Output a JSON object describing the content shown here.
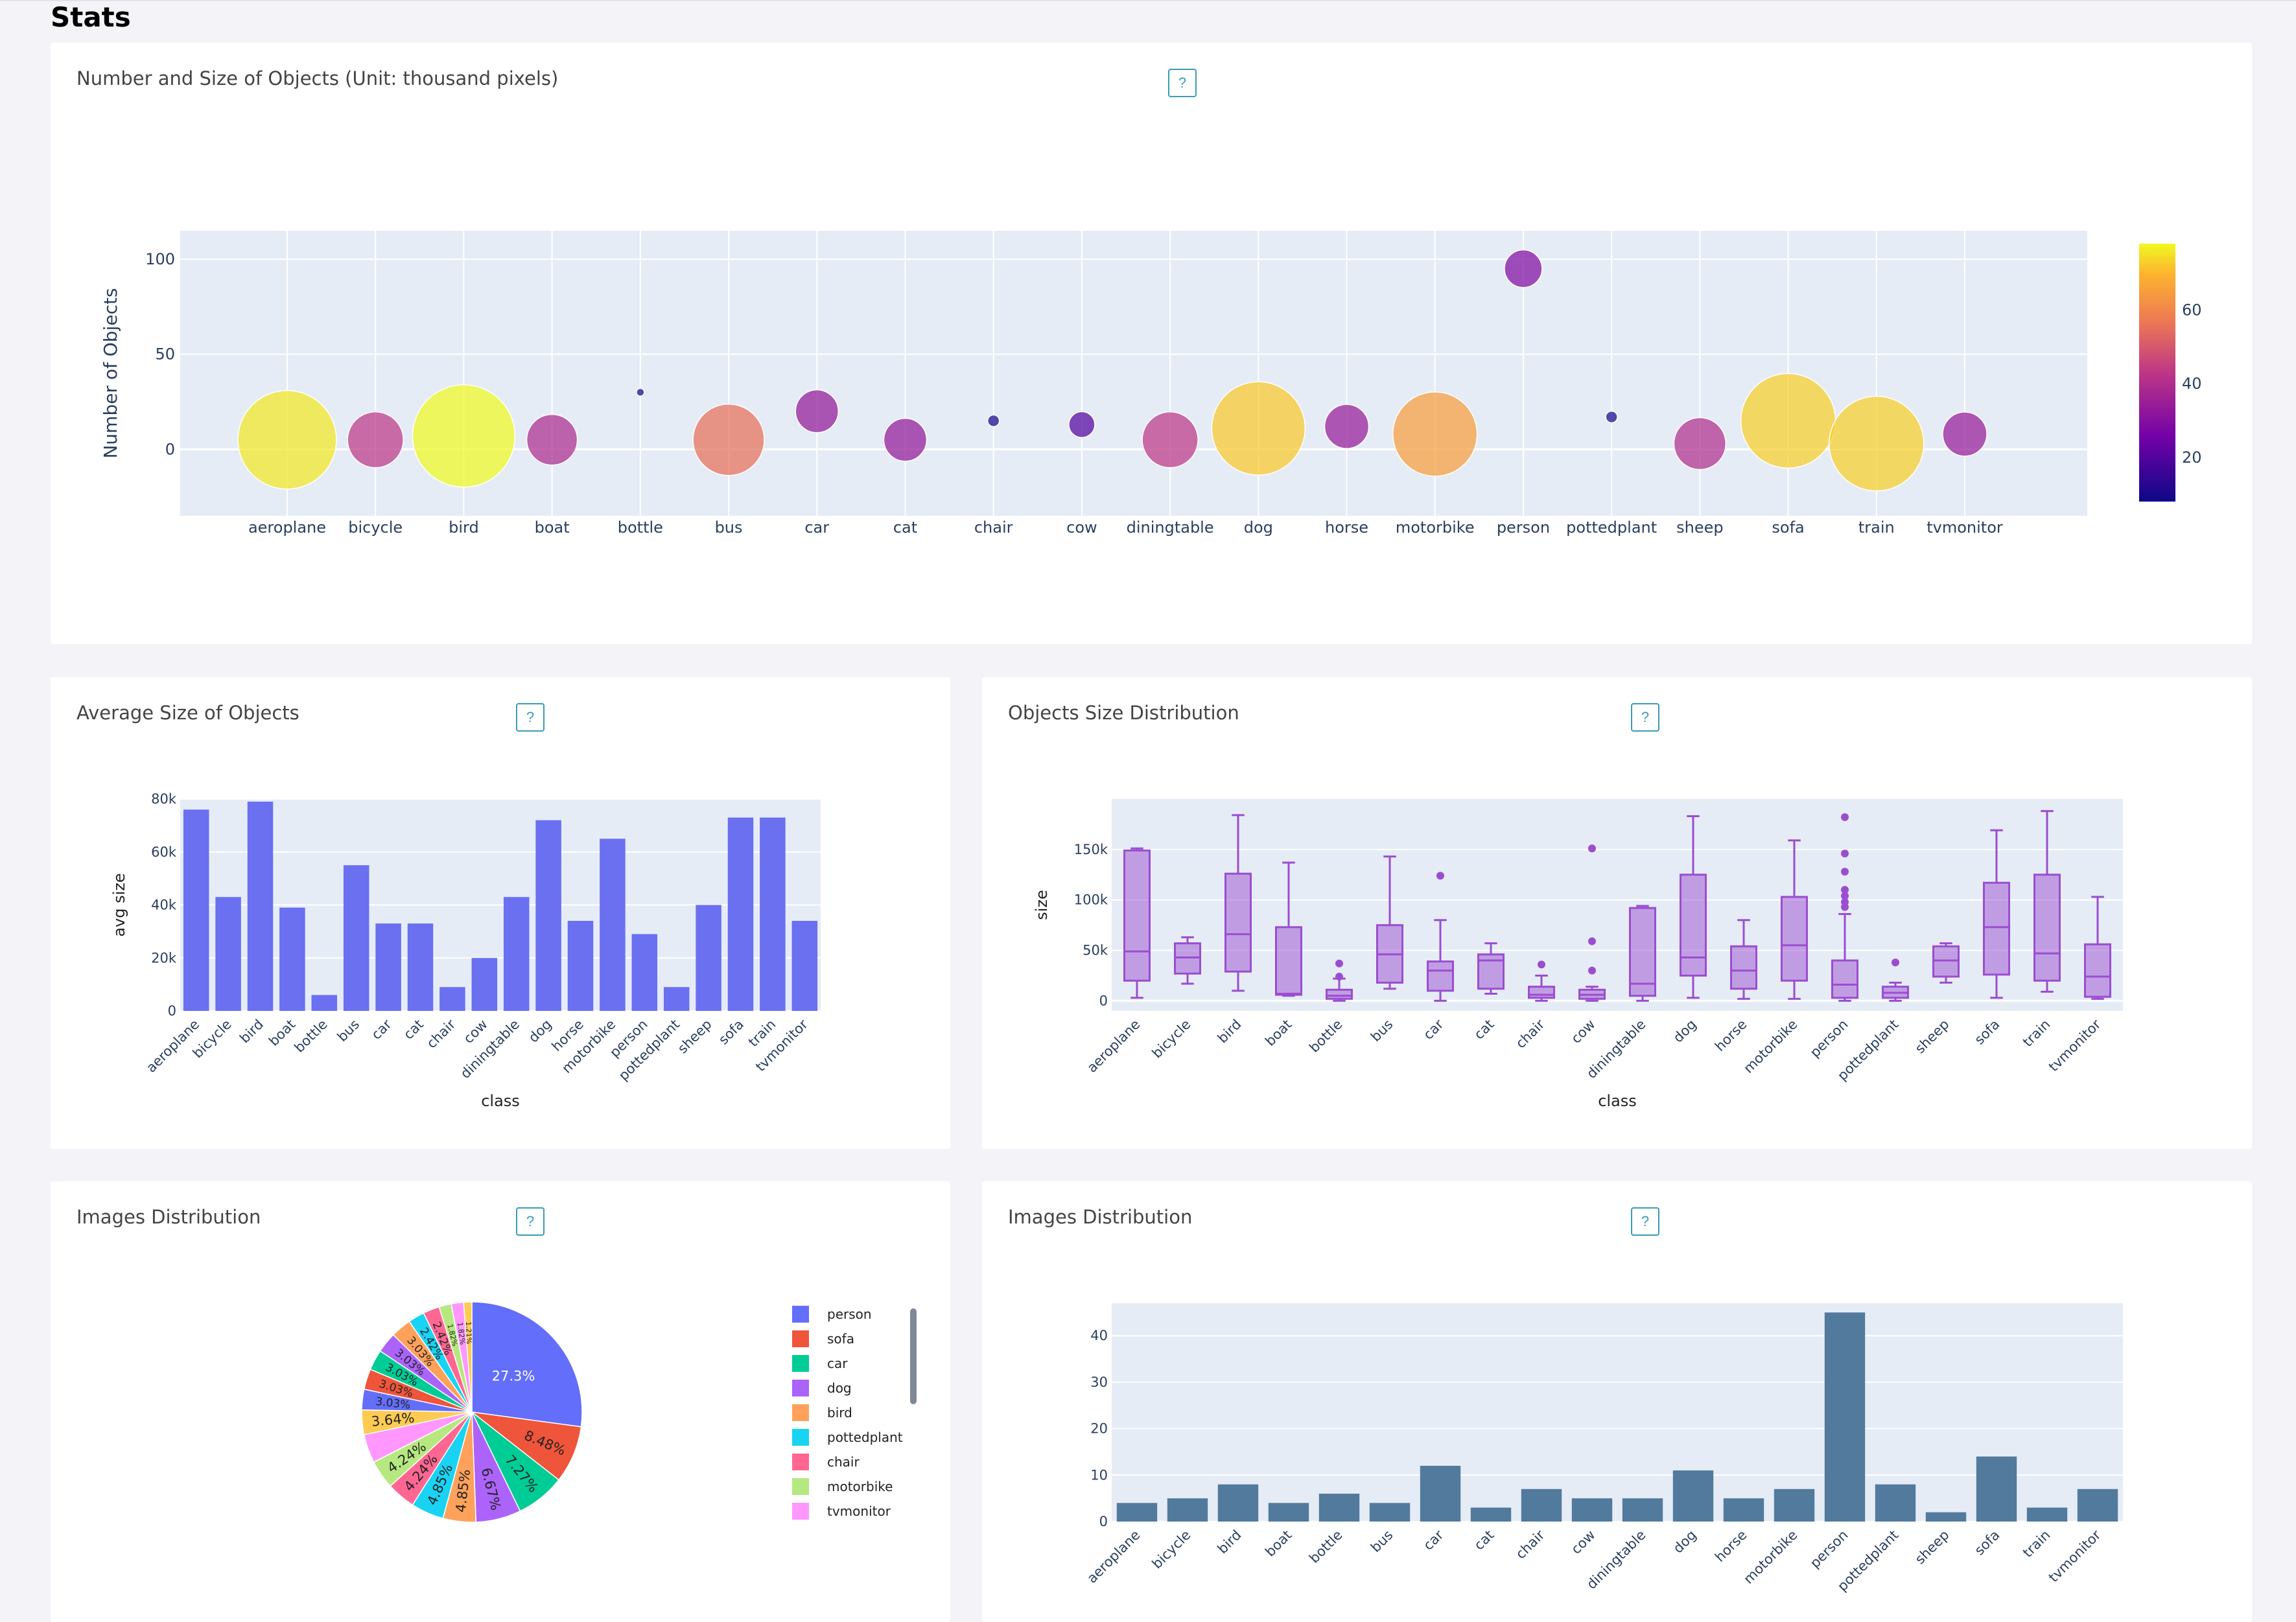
{
  "page": {
    "title": "Stats",
    "help_label": "?"
  },
  "cards": {
    "bubble": {
      "title": "Number and Size of Objects (Unit: thousand pixels)"
    },
    "avg": {
      "title": "Average Size of Objects"
    },
    "box": {
      "title": "Objects Size Distribution"
    },
    "pie": {
      "title": "Images Distribution"
    },
    "img_bar": {
      "title": "Images Distribution"
    }
  },
  "categories": [
    "aeroplane",
    "bicycle",
    "bird",
    "boat",
    "bottle",
    "bus",
    "car",
    "cat",
    "chair",
    "cow",
    "diningtable",
    "dog",
    "horse",
    "motorbike",
    "person",
    "pottedplant",
    "sheep",
    "sofa",
    "train",
    "tvmonitor"
  ],
  "chart_data": [
    {
      "id": "bubble",
      "type": "scatter",
      "ylabel": "Number of Objects",
      "yticks": [
        0,
        50,
        100
      ],
      "ylim": [
        -35,
        115
      ],
      "y": [
        5,
        5,
        7,
        5,
        30,
        5,
        20,
        5,
        15,
        13,
        5,
        11,
        12,
        8,
        95,
        17,
        3,
        15,
        3,
        8
      ],
      "size": [
        76,
        43,
        79,
        39,
        6,
        55,
        33,
        33,
        9,
        20,
        43,
        72,
        34,
        65,
        29,
        9,
        40,
        73,
        73,
        34
      ],
      "colorbar": {
        "ticks": [
          20,
          40,
          60
        ],
        "range": [
          8,
          78
        ]
      },
      "grid": true
    },
    {
      "id": "avg",
      "type": "bar",
      "xlabel": "class",
      "ylabel": "avg size",
      "yticks": [
        "0",
        "20k",
        "40k",
        "60k",
        "80k"
      ],
      "ylim": [
        0,
        80000
      ],
      "values": [
        76000,
        43000,
        79000,
        39000,
        6000,
        55000,
        33000,
        33000,
        9000,
        20000,
        43000,
        72000,
        34000,
        65000,
        29000,
        9000,
        40000,
        73000,
        73000,
        34000
      ],
      "color": "#6a70f0"
    },
    {
      "id": "box",
      "type": "box",
      "xlabel": "class",
      "ylabel": "size",
      "yticks": [
        "0",
        "50k",
        "100k",
        "150k"
      ],
      "ylim": [
        -10000,
        200000
      ],
      "boxes": [
        {
          "min": 3000,
          "q1": 20000,
          "median": 49000,
          "q3": 149000,
          "max": 151000,
          "outliers": []
        },
        {
          "min": 17000,
          "q1": 27000,
          "median": 43000,
          "q3": 57000,
          "max": 63000,
          "outliers": []
        },
        {
          "min": 10000,
          "q1": 29000,
          "median": 66000,
          "q3": 126000,
          "max": 184000,
          "outliers": []
        },
        {
          "min": 5000,
          "q1": 6000,
          "median": 7000,
          "q3": 73000,
          "max": 137000,
          "outliers": []
        },
        {
          "min": 0,
          "q1": 2000,
          "median": 5000,
          "q3": 11000,
          "max": 22000,
          "outliers": [
            24000,
            37000
          ]
        },
        {
          "min": 12000,
          "q1": 18000,
          "median": 46000,
          "q3": 75000,
          "max": 143000,
          "outliers": []
        },
        {
          "min": 0,
          "q1": 10000,
          "median": 30000,
          "q3": 39000,
          "max": 80000,
          "outliers": [
            124000
          ]
        },
        {
          "min": 7000,
          "q1": 12000,
          "median": 40000,
          "q3": 46000,
          "max": 57000,
          "outliers": []
        },
        {
          "min": 0,
          "q1": 3000,
          "median": 6000,
          "q3": 14000,
          "max": 25000,
          "outliers": [
            36000
          ]
        },
        {
          "min": 0,
          "q1": 2000,
          "median": 6000,
          "q3": 11000,
          "max": 14000,
          "outliers": [
            30000,
            59000,
            151000
          ]
        },
        {
          "min": 0,
          "q1": 5000,
          "median": 17000,
          "q3": 92000,
          "max": 94000,
          "outliers": []
        },
        {
          "min": 3000,
          "q1": 25000,
          "median": 43000,
          "q3": 125000,
          "max": 183000,
          "outliers": []
        },
        {
          "min": 2000,
          "q1": 12000,
          "median": 30000,
          "q3": 54000,
          "max": 80000,
          "outliers": []
        },
        {
          "min": 2000,
          "q1": 20000,
          "median": 55000,
          "q3": 103000,
          "max": 159000,
          "outliers": []
        },
        {
          "min": 0,
          "q1": 3000,
          "median": 16000,
          "q3": 40000,
          "max": 86000,
          "outliers": [
            93000,
            98000,
            104000,
            110000,
            128000,
            146000,
            182000
          ]
        },
        {
          "min": 0,
          "q1": 3000,
          "median": 8000,
          "q3": 14000,
          "max": 18000,
          "outliers": [
            38000
          ]
        },
        {
          "min": 18000,
          "q1": 24000,
          "median": 40000,
          "q3": 54000,
          "max": 57000,
          "outliers": []
        },
        {
          "min": 3000,
          "q1": 26000,
          "median": 73000,
          "q3": 117000,
          "max": 169000,
          "outliers": []
        },
        {
          "min": 9000,
          "q1": 20000,
          "median": 47000,
          "q3": 125000,
          "max": 188000,
          "outliers": []
        },
        {
          "min": 2000,
          "q1": 4000,
          "median": 24000,
          "q3": 56000,
          "max": 103000,
          "outliers": []
        }
      ],
      "color": "#9b4dd0"
    },
    {
      "id": "pie",
      "type": "pie",
      "legend_position": "right",
      "slices": [
        {
          "label": "person",
          "value": 27.3,
          "text": "27.3%",
          "color": "#636efa"
        },
        {
          "label": "sofa",
          "value": 8.48,
          "text": "8.48%",
          "color": "#ef553b"
        },
        {
          "label": "car",
          "value": 7.27,
          "text": "7.27%",
          "color": "#00cc96"
        },
        {
          "label": "dog",
          "value": 6.67,
          "text": "6.67%",
          "color": "#ab63fa"
        },
        {
          "label": "bird",
          "value": 4.85,
          "text": "4.85%",
          "color": "#ffa15a"
        },
        {
          "label": "pottedplant",
          "value": 4.85,
          "text": "4.85%",
          "color": "#19d3f3"
        },
        {
          "label": "chair",
          "value": 4.24,
          "text": "4.24%",
          "color": "#ff6692"
        },
        {
          "label": "motorbike",
          "value": 4.24,
          "text": "4.24%",
          "color": "#b6e880"
        },
        {
          "label": "tvmonitor",
          "value": 4.24,
          "text": "",
          "color": "#ff97ff"
        },
        {
          "label": "bottle",
          "value": 3.64,
          "text": "3.64%",
          "color": "#fecb52"
        },
        {
          "label": "aeroplane",
          "value": 3.03,
          "text": "3.03%",
          "color": "#636efa"
        },
        {
          "label": "bicycle",
          "value": 3.03,
          "text": "3.03%",
          "color": "#ef553b"
        },
        {
          "label": "boat",
          "value": 3.03,
          "text": "3.03%",
          "color": "#00cc96"
        },
        {
          "label": "bus",
          "value": 3.03,
          "text": "3.03%",
          "color": "#ab63fa"
        },
        {
          "label": "horse",
          "value": 3.03,
          "text": "3.03%",
          "color": "#ffa15a"
        },
        {
          "label": "cow",
          "value": 2.42,
          "text": "2.42%",
          "color": "#19d3f3"
        },
        {
          "label": "cat",
          "value": 2.42,
          "text": "2.42%",
          "color": "#ff6692"
        },
        {
          "label": "diningtable",
          "value": 1.82,
          "text": "1.82%",
          "color": "#b6e880"
        },
        {
          "label": "train",
          "value": 1.82,
          "text": "1.82%",
          "color": "#ff97ff"
        },
        {
          "label": "sheep",
          "value": 1.21,
          "text": "1.21%",
          "color": "#fecb52"
        }
      ],
      "legend_visible": [
        "person",
        "sofa",
        "car",
        "dog",
        "bird",
        "pottedplant",
        "chair",
        "motorbike",
        "tvmonitor"
      ]
    },
    {
      "id": "img_bar",
      "type": "bar",
      "yticks": [
        0,
        10,
        20,
        30,
        40
      ],
      "ylim": [
        0,
        47
      ],
      "values": [
        4,
        5,
        8,
        4,
        6,
        4,
        12,
        3,
        7,
        5,
        5,
        11,
        5,
        7,
        45,
        8,
        2,
        14,
        3,
        7
      ],
      "color": "#527a9c"
    }
  ]
}
